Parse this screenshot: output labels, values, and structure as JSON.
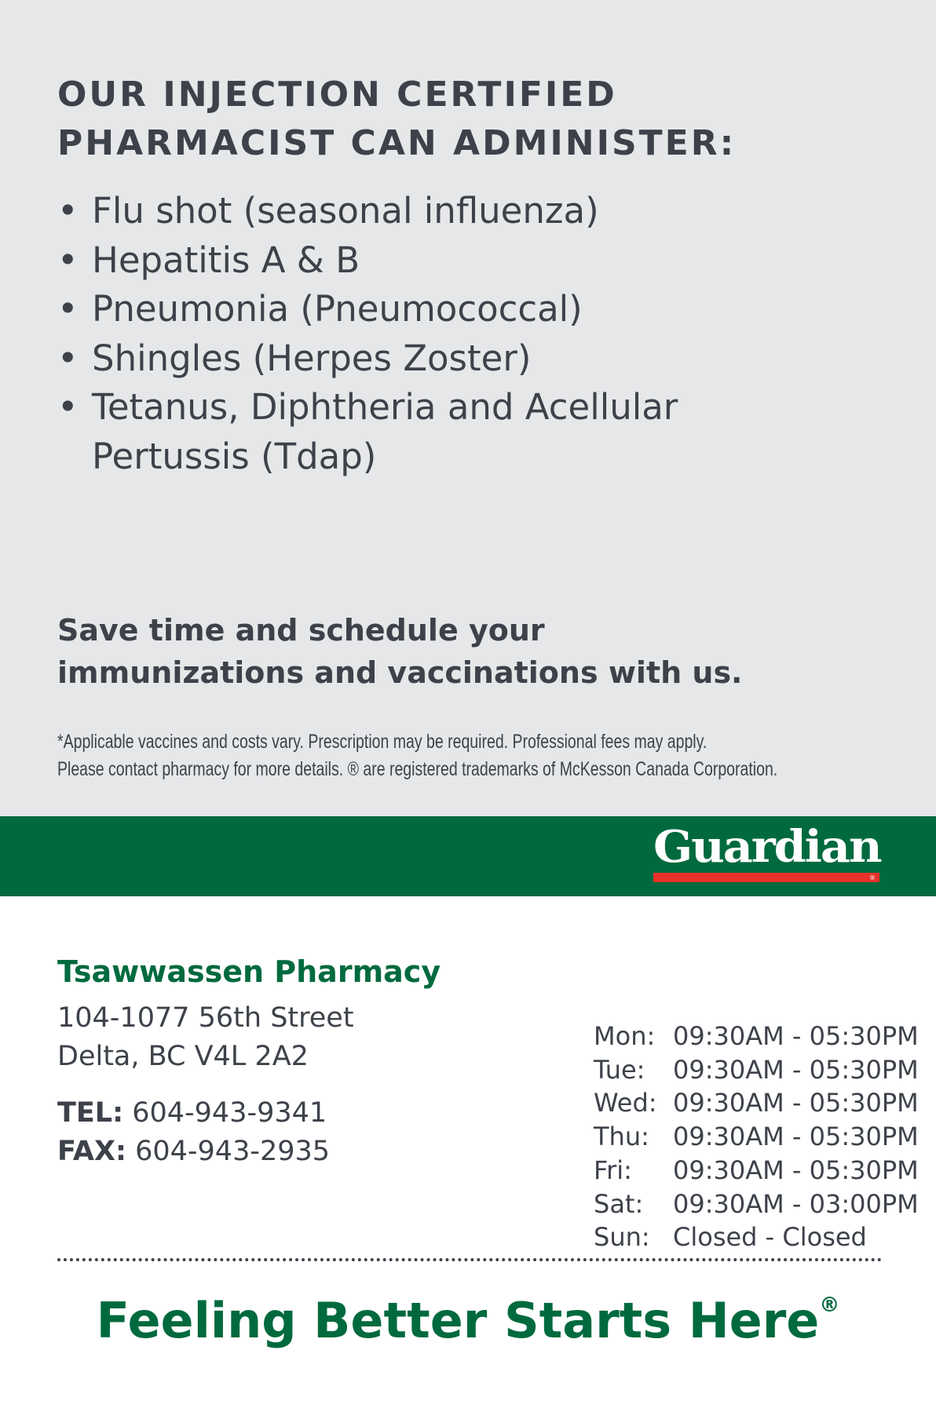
{
  "heading": {
    "line1": "OUR INJECTION CERTIFIED",
    "line2": "PHARMACIST CAN ADMINISTER:"
  },
  "vaccines": [
    "Flu shot (seasonal influenza)",
    "Hepatitis A & B",
    "Pneumonia (Pneumococcal)",
    "Shingles (Herpes Zoster)",
    "Tetanus, Diphtheria and Acellular Pertussis (Tdap)"
  ],
  "cta": {
    "line1": "Save time and schedule your",
    "line2": "immunizations and vaccinations with us."
  },
  "fine_print": {
    "line1": "*Applicable vaccines and costs vary. Prescription may be required. Professional fees may apply.",
    "line2": "Please contact pharmacy for more details. ® are registered trademarks of McKesson Canada Corporation."
  },
  "brand": {
    "logo": "Guardian",
    "green": "#006a3e",
    "red": "#e8312a"
  },
  "pharmacy": {
    "name": "Tsawwassen Pharmacy",
    "address1": "104-1077 56th Street",
    "address2": "Delta, BC V4L 2A2",
    "tel_label": "TEL:",
    "tel": "604-943-9341",
    "fax_label": "FAX:",
    "fax": "604-943-2935"
  },
  "hours": [
    {
      "day": "Mon:",
      "time": "09:30AM - 05:30PM"
    },
    {
      "day": "Tue:",
      "time": "09:30AM - 05:30PM"
    },
    {
      "day": "Wed:",
      "time": "09:30AM - 05:30PM"
    },
    {
      "day": "Thu:",
      "time": "09:30AM - 05:30PM"
    },
    {
      "day": "Fri:",
      "time": "09:30AM - 05:30PM"
    },
    {
      "day": "Sat:",
      "time": "09:30AM - 03:00PM"
    },
    {
      "day": "Sun:",
      "time": "Closed - Closed"
    }
  ],
  "tagline": {
    "text": "Feeling Better Starts Here",
    "mark": "®"
  }
}
